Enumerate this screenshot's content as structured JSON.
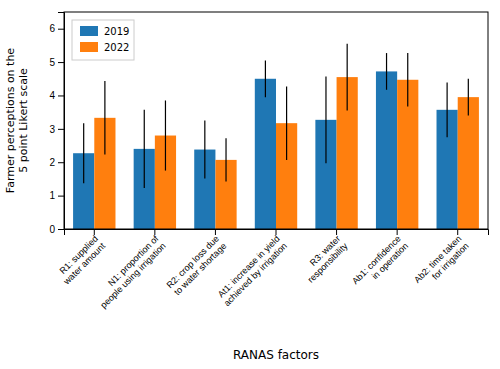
{
  "chart_data": {
    "type": "bar",
    "categories": [
      "R1: supplied\nwater amount",
      "N1: proportion of\npeople using irrigation",
      "R2: crop loss due\nto water shortage",
      "At1: increase in yield\nachieved by irrigation",
      "R3: water\nresponsibility",
      "Ab1: confidence\nin operation",
      "Ab2: time taken\nfor irrigation"
    ],
    "series": [
      {
        "name": "2019",
        "color": "#1f77b4",
        "values": [
          2.27,
          2.4,
          2.38,
          4.5,
          3.27,
          4.72,
          3.57
        ],
        "errors": [
          0.9,
          1.17,
          0.87,
          0.55,
          1.3,
          0.55,
          0.82
        ]
      },
      {
        "name": "2022",
        "color": "#ff7f0e",
        "values": [
          3.33,
          2.8,
          2.07,
          3.17,
          4.55,
          4.47,
          3.95
        ],
        "errors": [
          1.1,
          1.05,
          0.65,
          1.1,
          1.0,
          0.8,
          0.55
        ]
      }
    ],
    "xlabel": "RANAS factors",
    "ylabel": "Farmer perceptions on the\n5 point Likert scale",
    "ylim": [
      0,
      6.5
    ],
    "yticks": [
      0,
      1,
      2,
      3,
      4,
      5,
      6
    ],
    "legend": "upper left"
  }
}
